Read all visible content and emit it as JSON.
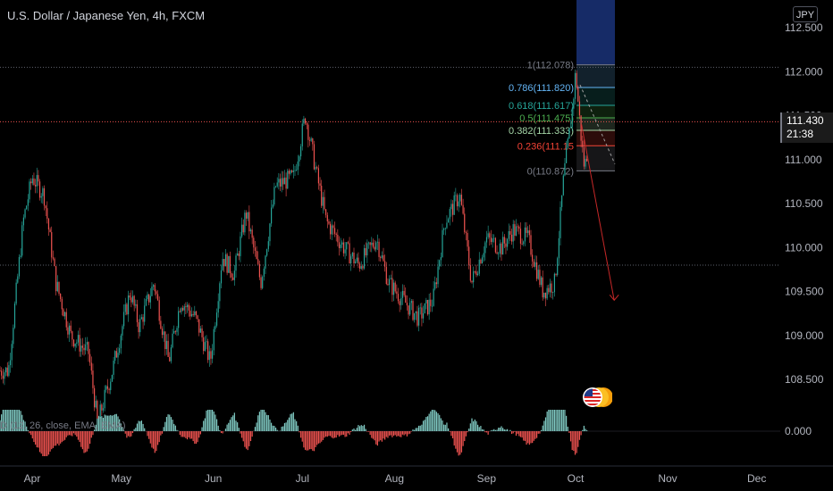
{
  "header": {
    "title": "U.S. Dollar / Japanese Yen, 4h, FXCM",
    "currency_button": "JPY"
  },
  "price_tag": {
    "price": "111.430",
    "countdown": "21:38"
  },
  "indicator": {
    "label": "D (12, 26, close, EMA, EMA)"
  },
  "colors": {
    "up": "#26a69a",
    "down": "#ef5350",
    "background": "#000000",
    "grid_line": "#ef5350",
    "fib_top": "#1e3a8a"
  },
  "chart_data": {
    "type": "candlestick",
    "title": "U.S. Dollar / Japanese Yen, 4h, FXCM",
    "ylim": [
      108.2,
      112.6
    ],
    "y_ticks": [
      "112.500",
      "112.000",
      "111.500",
      "111.000",
      "110.500",
      "110.000",
      "109.500",
      "109.000",
      "108.500"
    ],
    "x_ticks": [
      "Apr",
      "May",
      "Jun",
      "Jul",
      "Aug",
      "Sep",
      "Oct",
      "Nov",
      "Dec"
    ],
    "close_path": [
      {
        "x": "Mar 24",
        "y": 108.6
      },
      {
        "x": "Mar 29",
        "y": 110.3
      },
      {
        "x": "Apr 1",
        "y": 110.8
      },
      {
        "x": "Apr 5",
        "y": 110.6
      },
      {
        "x": "Apr 9",
        "y": 109.6
      },
      {
        "x": "Apr 14",
        "y": 109.0
      },
      {
        "x": "Apr 20",
        "y": 108.8
      },
      {
        "x": "Apr 23",
        "y": 108.0
      },
      {
        "x": "Apr 28",
        "y": 108.6
      },
      {
        "x": "May 4",
        "y": 109.5
      },
      {
        "x": "May 7",
        "y": 109.1
      },
      {
        "x": "May 12",
        "y": 109.6
      },
      {
        "x": "May 17",
        "y": 108.7
      },
      {
        "x": "May 21",
        "y": 109.4
      },
      {
        "x": "May 26",
        "y": 109.2
      },
      {
        "x": "May 31",
        "y": 108.7
      },
      {
        "x": "Jun 4",
        "y": 109.9
      },
      {
        "x": "Jun 8",
        "y": 109.7
      },
      {
        "x": "Jun 12",
        "y": 110.4
      },
      {
        "x": "Jun 17",
        "y": 109.6
      },
      {
        "x": "Jun 22",
        "y": 110.7
      },
      {
        "x": "Jun 28",
        "y": 110.8
      },
      {
        "x": "Jul 2",
        "y": 111.5
      },
      {
        "x": "Jul 6",
        "y": 110.8
      },
      {
        "x": "Jul 9",
        "y": 110.3
      },
      {
        "x": "Jul 15",
        "y": 110.0
      },
      {
        "x": "Jul 20",
        "y": 109.8
      },
      {
        "x": "Jul 26",
        "y": 110.1
      },
      {
        "x": "Jul 30",
        "y": 109.6
      },
      {
        "x": "Aug 4",
        "y": 109.4
      },
      {
        "x": "Aug 9",
        "y": 109.2
      },
      {
        "x": "Aug 14",
        "y": 109.4
      },
      {
        "x": "Aug 18",
        "y": 110.3
      },
      {
        "x": "Aug 23",
        "y": 110.6
      },
      {
        "x": "Aug 27",
        "y": 109.6
      },
      {
        "x": "Sep 1",
        "y": 110.1
      },
      {
        "x": "Sep 6",
        "y": 110.0
      },
      {
        "x": "Sep 10",
        "y": 110.2
      },
      {
        "x": "Sep 15",
        "y": 110.1
      },
      {
        "x": "Sep 20",
        "y": 109.5
      },
      {
        "x": "Sep 24",
        "y": 109.6
      },
      {
        "x": "Sep 27",
        "y": 110.8
      },
      {
        "x": "Sep 30",
        "y": 111.6
      },
      {
        "x": "Oct 1",
        "y": 112.0
      },
      {
        "x": "Oct 3",
        "y": 111.2
      },
      {
        "x": "Oct 4",
        "y": 110.9
      },
      {
        "x": "Oct 5",
        "y": 111.1
      }
    ],
    "fibonacci": [
      {
        "level": "1",
        "price": "112.078",
        "label": "1(112.078)",
        "color": "#787b86"
      },
      {
        "level": "0.786",
        "price": "111.820",
        "label": "0.786(111.820)",
        "color": "#64b5f6"
      },
      {
        "level": "0.618",
        "price": "111.617",
        "label": "0.618(111.617)",
        "color": "#26a69a"
      },
      {
        "level": "0.5",
        "price": "111.475",
        "label": "0.5(111.475)",
        "color": "#4caf50"
      },
      {
        "level": "0.382",
        "price": "111.333",
        "label": "0.382(111.333)",
        "color": "#a5d6a7"
      },
      {
        "level": "0.236",
        "price": "111.157",
        "label": "0.236(111.15",
        "color": "#f44336"
      },
      {
        "level": "0",
        "price": "110.872",
        "label": "0(110.872)",
        "color": "#787b86"
      }
    ],
    "horizontal_lines": [
      112.05,
      111.43,
      109.8
    ],
    "projection_arrow": {
      "from": {
        "x": "Oct 3",
        "y": 111.4
      },
      "to": {
        "x": "Oct 14",
        "y": 109.4
      }
    },
    "macd": {
      "label": "D (12, 26, close, EMA, EMA)",
      "zero_tick": "0.000"
    }
  }
}
